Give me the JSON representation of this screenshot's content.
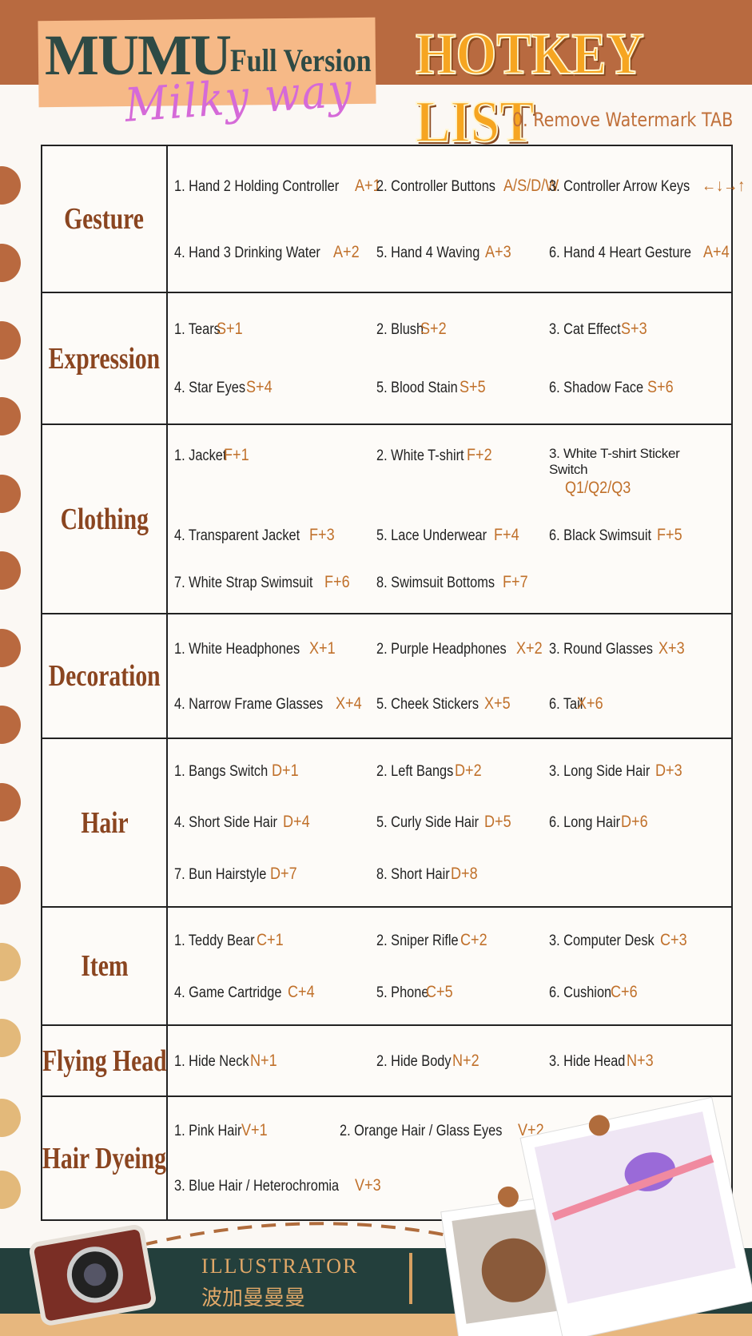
{
  "header": {
    "brand": "MUMU",
    "version": "Full Version",
    "script": "Milky way",
    "title": "HOTKEY LIST",
    "note": "0. Remove Watermark TAB"
  },
  "sections": [
    {
      "category": "Gesture",
      "items": [
        {
          "label": "1. Hand 2 Holding Controller",
          "key": "A+1"
        },
        {
          "label": "2. Controller Buttons",
          "key": "A/S/D/W"
        },
        {
          "label": "3. Controller Arrow Keys",
          "key": "←↓→↑"
        },
        {
          "label": "4. Hand 3 Drinking Water",
          "key": "A+2"
        },
        {
          "label": "5. Hand 4 Waving",
          "key": "A+3"
        },
        {
          "label": "6. Hand 4 Heart Gesture",
          "key": "A+4"
        }
      ]
    },
    {
      "category": "Expression",
      "items": [
        {
          "label": "1. Tears",
          "key": "S+1"
        },
        {
          "label": "2. Blush",
          "key": "S+2"
        },
        {
          "label": "3. Cat Effect",
          "key": "S+3"
        },
        {
          "label": "4. Star Eyes",
          "key": "S+4"
        },
        {
          "label": "5. Blood Stain",
          "key": "S+5"
        },
        {
          "label": "6. Shadow Face",
          "key": "S+6"
        }
      ]
    },
    {
      "category": "Clothing",
      "items": [
        {
          "label": "1. Jacket",
          "key": "F+1"
        },
        {
          "label": "2. White T-shirt",
          "key": "F+2"
        },
        {
          "label": "3. White T-shirt Sticker Switch",
          "key": "Q1/Q2/Q3"
        },
        {
          "label": "4. Transparent Jacket",
          "key": "F+3"
        },
        {
          "label": "5. Lace Underwear",
          "key": "F+4"
        },
        {
          "label": "6. Black Swimsuit",
          "key": "F+5"
        },
        {
          "label": "7. White Strap Swimsuit",
          "key": "F+6"
        },
        {
          "label": "8. Swimsuit Bottoms",
          "key": "F+7"
        }
      ]
    },
    {
      "category": "Decoration",
      "items": [
        {
          "label": "1. White Headphones",
          "key": "X+1"
        },
        {
          "label": "2. Purple Headphones",
          "key": "X+2"
        },
        {
          "label": "3. Round Glasses",
          "key": "X+3"
        },
        {
          "label": "4. Narrow Frame Glasses",
          "key": "X+4"
        },
        {
          "label": "5. Cheek Stickers",
          "key": "X+5"
        },
        {
          "label": "6. Tail",
          "key": "X+6"
        }
      ]
    },
    {
      "category": "Hair",
      "items": [
        {
          "label": "1. Bangs Switch",
          "key": "D+1"
        },
        {
          "label": "2. Left Bangs",
          "key": "D+2"
        },
        {
          "label": "3. Long Side Hair",
          "key": "D+3"
        },
        {
          "label": "4. Short Side Hair",
          "key": "D+4"
        },
        {
          "label": "5. Curly Side Hair",
          "key": "D+5"
        },
        {
          "label": "6. Long Hair",
          "key": "D+6"
        },
        {
          "label": "7. Bun Hairstyle",
          "key": "D+7"
        },
        {
          "label": "8. Short Hair",
          "key": "D+8"
        }
      ]
    },
    {
      "category": "Item",
      "items": [
        {
          "label": "1. Teddy Bear",
          "key": "C+1"
        },
        {
          "label": "2. Sniper Rifle",
          "key": "C+2"
        },
        {
          "label": "3. Computer Desk",
          "key": "C+3"
        },
        {
          "label": "4. Game Cartridge",
          "key": "C+4"
        },
        {
          "label": "5. Phone",
          "key": "C+5"
        },
        {
          "label": "6. Cushion",
          "key": "C+6"
        }
      ]
    },
    {
      "category": "Flying Head",
      "items": [
        {
          "label": "1. Hide Neck",
          "key": "N+1"
        },
        {
          "label": "2. Hide Body",
          "key": "N+2"
        },
        {
          "label": "3. Hide Head",
          "key": "N+3"
        }
      ]
    },
    {
      "category": "Hair Dyeing",
      "items": [
        {
          "label": "1. Pink Hair",
          "key": "V+1"
        },
        {
          "label": "2. Orange Hair / Glass Eyes",
          "key": "V+2"
        },
        {
          "label": "3. Blue Hair / Heterochromia",
          "key": "V+3"
        }
      ]
    }
  ],
  "footer": {
    "role": "ILLUSTRATOR",
    "name": "波加曼曼曼"
  }
}
